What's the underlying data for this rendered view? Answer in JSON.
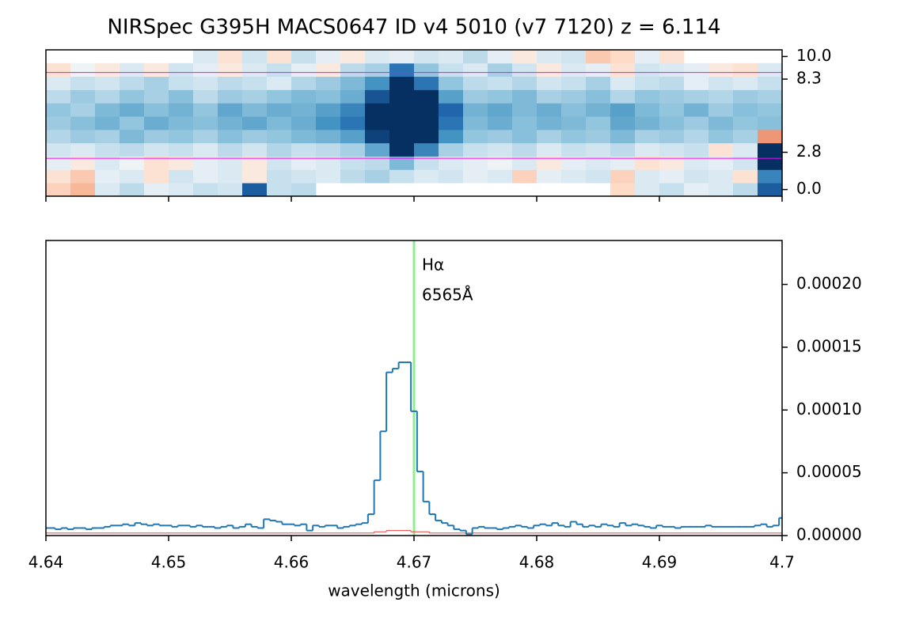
{
  "chart_data": [
    {
      "type": "heatmap",
      "title": "NIRSpec G395H MACS0647 ID v4 5010 (v7 7120)  z = 6.114",
      "xlim": [
        4.64,
        4.7
      ],
      "xticks": [
        4.64,
        4.65,
        4.66,
        4.67,
        4.68,
        4.69,
        4.7
      ],
      "ylim": [
        -0.5,
        10.5
      ],
      "yticks": [
        {
          "value": 0,
          "label": "0.0"
        },
        {
          "value": 2.8,
          "label": "2.8"
        },
        {
          "value": 8.3,
          "label": "8.3"
        },
        {
          "value": 10,
          "label": "10.0"
        }
      ],
      "trace_lines": [
        2.35,
        8.8
      ],
      "trace_color": "#ff00ff",
      "values": [
        [
          -0.5,
          -0.8,
          0.3,
          0.6,
          0.2,
          0.3,
          0.5,
          0.4,
          2.5,
          0.5,
          0.6,
          null,
          null,
          null,
          null,
          null,
          null,
          null,
          null,
          null,
          null,
          null,
          null,
          -0.4,
          0.3,
          0.5,
          0.2,
          0.3,
          0.6,
          2.5
        ],
        [
          -0.3,
          -0.6,
          0.2,
          0.3,
          -0.3,
          0.4,
          0.2,
          0.3,
          -0.2,
          0.5,
          0.4,
          0.3,
          0.6,
          0.8,
          0.5,
          0.3,
          0.4,
          0.2,
          0.3,
          -0.5,
          0.2,
          0.3,
          0.4,
          -0.5,
          0.3,
          0.2,
          0.4,
          0.3,
          -0.3,
          2.0
        ],
        [
          0.2,
          -0.2,
          0.3,
          0.1,
          -0.3,
          -0.2,
          0.2,
          0.3,
          -0.2,
          0.4,
          0.2,
          0.3,
          0.5,
          0.6,
          1.2,
          0.5,
          0.3,
          0.2,
          0.1,
          0.3,
          -0.2,
          0.2,
          0.3,
          0.2,
          -0.3,
          -0.2,
          0.3,
          0.2,
          0.4,
          3
        ],
        [
          0.4,
          0.3,
          0.5,
          0.6,
          0.4,
          0.5,
          0.3,
          0.6,
          0.4,
          0.7,
          0.5,
          0.6,
          0.8,
          1.5,
          3,
          2.0,
          0.8,
          0.5,
          0.4,
          0.6,
          0.3,
          0.5,
          0.4,
          0.6,
          0.3,
          0.4,
          0.5,
          -0.3,
          0.3,
          3
        ],
        [
          0.7,
          0.9,
          0.8,
          1.2,
          0.9,
          1.0,
          0.8,
          1.1,
          0.9,
          1.0,
          1.2,
          1.3,
          1.6,
          2.8,
          3,
          3,
          1.8,
          1.0,
          0.9,
          1.1,
          0.8,
          1.0,
          0.9,
          1.2,
          0.8,
          0.9,
          0.7,
          1.0,
          0.8,
          -1.2
        ],
        [
          0.9,
          1.1,
          1.3,
          1.0,
          1.4,
          1.2,
          1.1,
          1.3,
          1.5,
          1.2,
          1.4,
          1.8,
          2.2,
          3,
          3,
          3,
          2.2,
          1.2,
          1.4,
          1.1,
          1.3,
          1.2,
          1.0,
          1.5,
          1.3,
          1.1,
          0.9,
          1.2,
          1.0,
          1.1
        ],
        [
          1.0,
          0.8,
          1.2,
          1.4,
          1.1,
          1.3,
          1.0,
          1.5,
          1.2,
          1.4,
          1.3,
          1.6,
          2.0,
          3,
          3,
          3,
          2.4,
          1.3,
          1.5,
          1.2,
          1.4,
          1.1,
          1.3,
          1.6,
          1.2,
          1.0,
          1.3,
          0.9,
          1.1,
          1.0
        ],
        [
          0.6,
          0.9,
          0.7,
          1.0,
          0.8,
          1.1,
          0.6,
          0.9,
          0.8,
          1.0,
          1.2,
          1.1,
          1.4,
          2.6,
          3,
          3,
          1.6,
          0.9,
          1.0,
          1.2,
          0.8,
          0.9,
          1.1,
          0.7,
          1.0,
          0.9,
          0.8,
          0.7,
          0.9,
          0.8
        ],
        [
          0.3,
          0.5,
          0.4,
          0.6,
          0.8,
          0.5,
          0.4,
          0.6,
          0.5,
          0.3,
          0.7,
          0.9,
          1.2,
          1.8,
          3,
          2.2,
          1.0,
          0.6,
          0.5,
          0.7,
          0.4,
          0.5,
          0.8,
          0.3,
          0.5,
          0.6,
          0.2,
          0.4,
          0.3,
          0.5
        ],
        [
          -0.3,
          0.1,
          -0.2,
          0.3,
          -0.2,
          0.4,
          0.2,
          -0.2,
          0.3,
          0.5,
          0.2,
          -0.2,
          0.6,
          0.8,
          2.2,
          1.0,
          0.5,
          0.3,
          0.8,
          0.4,
          -0.2,
          0.3,
          0.2,
          -0.3,
          0.4,
          0.3,
          0.2,
          -0.2,
          -0.3,
          0.3
        ],
        [
          null,
          null,
          null,
          null,
          null,
          null,
          0.3,
          -0.3,
          0.4,
          -0.3,
          0.5,
          0.2,
          -0.2,
          0.3,
          0.2,
          0.4,
          0.3,
          0.6,
          0.2,
          -0.2,
          0.3,
          0.4,
          -0.6,
          -0.4,
          0.2,
          -0.3,
          null,
          null,
          null,
          null
        ]
      ]
    },
    {
      "type": "line",
      "xlabel": "wavelength (microns)",
      "xlim": [
        4.64,
        4.7
      ],
      "xticks": [
        4.64,
        4.65,
        4.66,
        4.67,
        4.68,
        4.69,
        4.7
      ],
      "ylim": [
        0,
        0.000235
      ],
      "yticks": [
        {
          "value": 0,
          "label": "0.00000"
        },
        {
          "value": 5e-05,
          "label": "0.00005"
        },
        {
          "value": 0.0001,
          "label": "0.00010"
        },
        {
          "value": 0.00015,
          "label": "0.00015"
        },
        {
          "value": 0.0002,
          "label": "0.00020"
        }
      ],
      "annotation": {
        "x": 4.67,
        "lines": [
          "Hα",
          "6565Å"
        ],
        "color": "#90ee90"
      },
      "x": [
        4.64,
        4.6405,
        4.641,
        4.6415,
        4.642,
        4.6425,
        4.643,
        4.6435,
        4.644,
        4.6445,
        4.645,
        4.6455,
        4.646,
        4.6465,
        4.647,
        4.6475,
        4.648,
        4.6485,
        4.649,
        4.6495,
        4.65,
        4.6505,
        4.651,
        4.6515,
        4.652,
        4.6525,
        4.653,
        4.6535,
        4.654,
        4.6545,
        4.655,
        4.6555,
        4.656,
        4.6565,
        4.657,
        4.6575,
        4.658,
        4.6585,
        4.659,
        4.6595,
        4.66,
        4.6605,
        4.661,
        4.6615,
        4.662,
        4.6625,
        4.663,
        4.6635,
        4.664,
        4.6645,
        4.665,
        4.6655,
        4.666,
        4.6665,
        4.667,
        4.6675,
        4.668,
        4.6685,
        4.669,
        4.6695,
        4.67,
        4.6705,
        4.671,
        4.6715,
        4.672,
        4.6725,
        4.673,
        4.6735,
        4.674,
        4.6745,
        4.675,
        4.6755,
        4.676,
        4.6765,
        4.677,
        4.6775,
        4.678,
        4.6785,
        4.679,
        4.6795,
        4.68,
        4.6805,
        4.681,
        4.6815,
        4.682,
        4.6825,
        4.683,
        4.6835,
        4.684,
        4.6845,
        4.685,
        4.6855,
        4.686,
        4.6865,
        4.687,
        4.6875,
        4.688,
        4.6885,
        4.689,
        4.6895,
        4.69,
        4.6905,
        4.691,
        4.6915,
        4.692,
        4.6925,
        4.693,
        4.6935,
        4.694,
        4.6945,
        4.695,
        4.6955,
        4.696,
        4.6965,
        4.697,
        4.6975,
        4.698,
        4.6985,
        4.699,
        4.6995,
        4.7
      ],
      "series": [
        {
          "name": "flux",
          "color": "#1f77b4",
          "values": [
            6e-06,
            6e-06,
            5e-06,
            6e-06,
            5e-06,
            6e-06,
            6e-06,
            5e-06,
            6e-06,
            6e-06,
            7e-06,
            8e-06,
            8e-06,
            9e-06,
            8e-06,
            1e-05,
            9e-06,
            8e-06,
            9e-06,
            8e-06,
            8e-06,
            7e-06,
            8e-06,
            8e-06,
            7e-06,
            8e-06,
            7e-06,
            7e-06,
            6e-06,
            7e-06,
            8e-06,
            6e-06,
            7e-06,
            9e-06,
            7e-06,
            6e-06,
            1.3e-05,
            1.2e-05,
            1.1e-05,
            9e-06,
            9e-06,
            8e-06,
            9e-06,
            4e-06,
            8e-06,
            7e-06,
            8e-06,
            8e-06,
            6e-06,
            7e-06,
            8e-06,
            9e-06,
            1e-05,
            1.7e-05,
            4.4e-05,
            8.3e-05,
            0.00013,
            0.000133,
            0.000138,
            0.000138,
            9.9e-05,
            5.1e-05,
            2.7e-05,
            1.7e-05,
            1.2e-05,
            1e-05,
            8e-06,
            5e-06,
            4e-06,
            1e-06,
            6e-06,
            7e-06,
            6e-06,
            6e-06,
            5e-06,
            6e-06,
            7e-06,
            8e-06,
            7e-06,
            6e-06,
            8e-06,
            9e-06,
            8e-06,
            1e-05,
            8e-06,
            7e-06,
            1.1e-05,
            9e-06,
            7e-06,
            8e-06,
            7e-06,
            9e-06,
            8e-06,
            7e-06,
            1e-05,
            8e-06,
            9e-06,
            8e-06,
            7e-06,
            6e-06,
            8e-06,
            7e-06,
            7e-06,
            6e-06,
            7e-06,
            7e-06,
            7e-06,
            7e-06,
            8e-06,
            7e-06,
            7e-06,
            7e-06,
            7e-06,
            7e-06,
            7e-06,
            7e-06,
            8e-06,
            9e-06,
            7e-06,
            8e-06,
            1.4e-05
          ]
        },
        {
          "name": "error",
          "color": "#e8403a",
          "values": [
            2e-06,
            2e-06,
            2e-06,
            2e-06,
            2e-06,
            2e-06,
            2e-06,
            2e-06,
            2e-06,
            2e-06,
            2e-06,
            2e-06,
            2e-06,
            2e-06,
            2e-06,
            2e-06,
            2e-06,
            2e-06,
            2e-06,
            2e-06,
            2e-06,
            2e-06,
            2e-06,
            2e-06,
            2e-06,
            2e-06,
            2e-06,
            2e-06,
            2e-06,
            2e-06,
            2e-06,
            2e-06,
            2e-06,
            2e-06,
            2e-06,
            2e-06,
            2e-06,
            2e-06,
            2e-06,
            2e-06,
            2e-06,
            2e-06,
            2e-06,
            2e-06,
            2e-06,
            2e-06,
            2e-06,
            2e-06,
            2e-06,
            2e-06,
            2e-06,
            2e-06,
            2e-06,
            2e-06,
            3e-06,
            3e-06,
            4e-06,
            4e-06,
            4e-06,
            4e-06,
            3e-06,
            3e-06,
            3e-06,
            2e-06,
            2e-06,
            2e-06,
            2e-06,
            2e-06,
            2e-06,
            2e-06,
            2e-06,
            2e-06,
            2e-06,
            2e-06,
            2e-06,
            2e-06,
            2e-06,
            2e-06,
            2e-06,
            2e-06,
            2e-06,
            2e-06,
            2e-06,
            2e-06,
            2e-06,
            2e-06,
            2e-06,
            2e-06,
            2e-06,
            2e-06,
            2e-06,
            2e-06,
            2e-06,
            2e-06,
            2e-06,
            2e-06,
            2e-06,
            2e-06,
            2e-06,
            2e-06,
            2e-06,
            2e-06,
            2e-06,
            2e-06,
            2e-06,
            2e-06,
            2e-06,
            2e-06,
            2e-06,
            2e-06,
            2e-06,
            2e-06,
            2e-06,
            2e-06,
            2e-06,
            2e-06,
            2e-06,
            2e-06,
            2e-06,
            2e-06,
            2e-06
          ]
        }
      ]
    }
  ]
}
